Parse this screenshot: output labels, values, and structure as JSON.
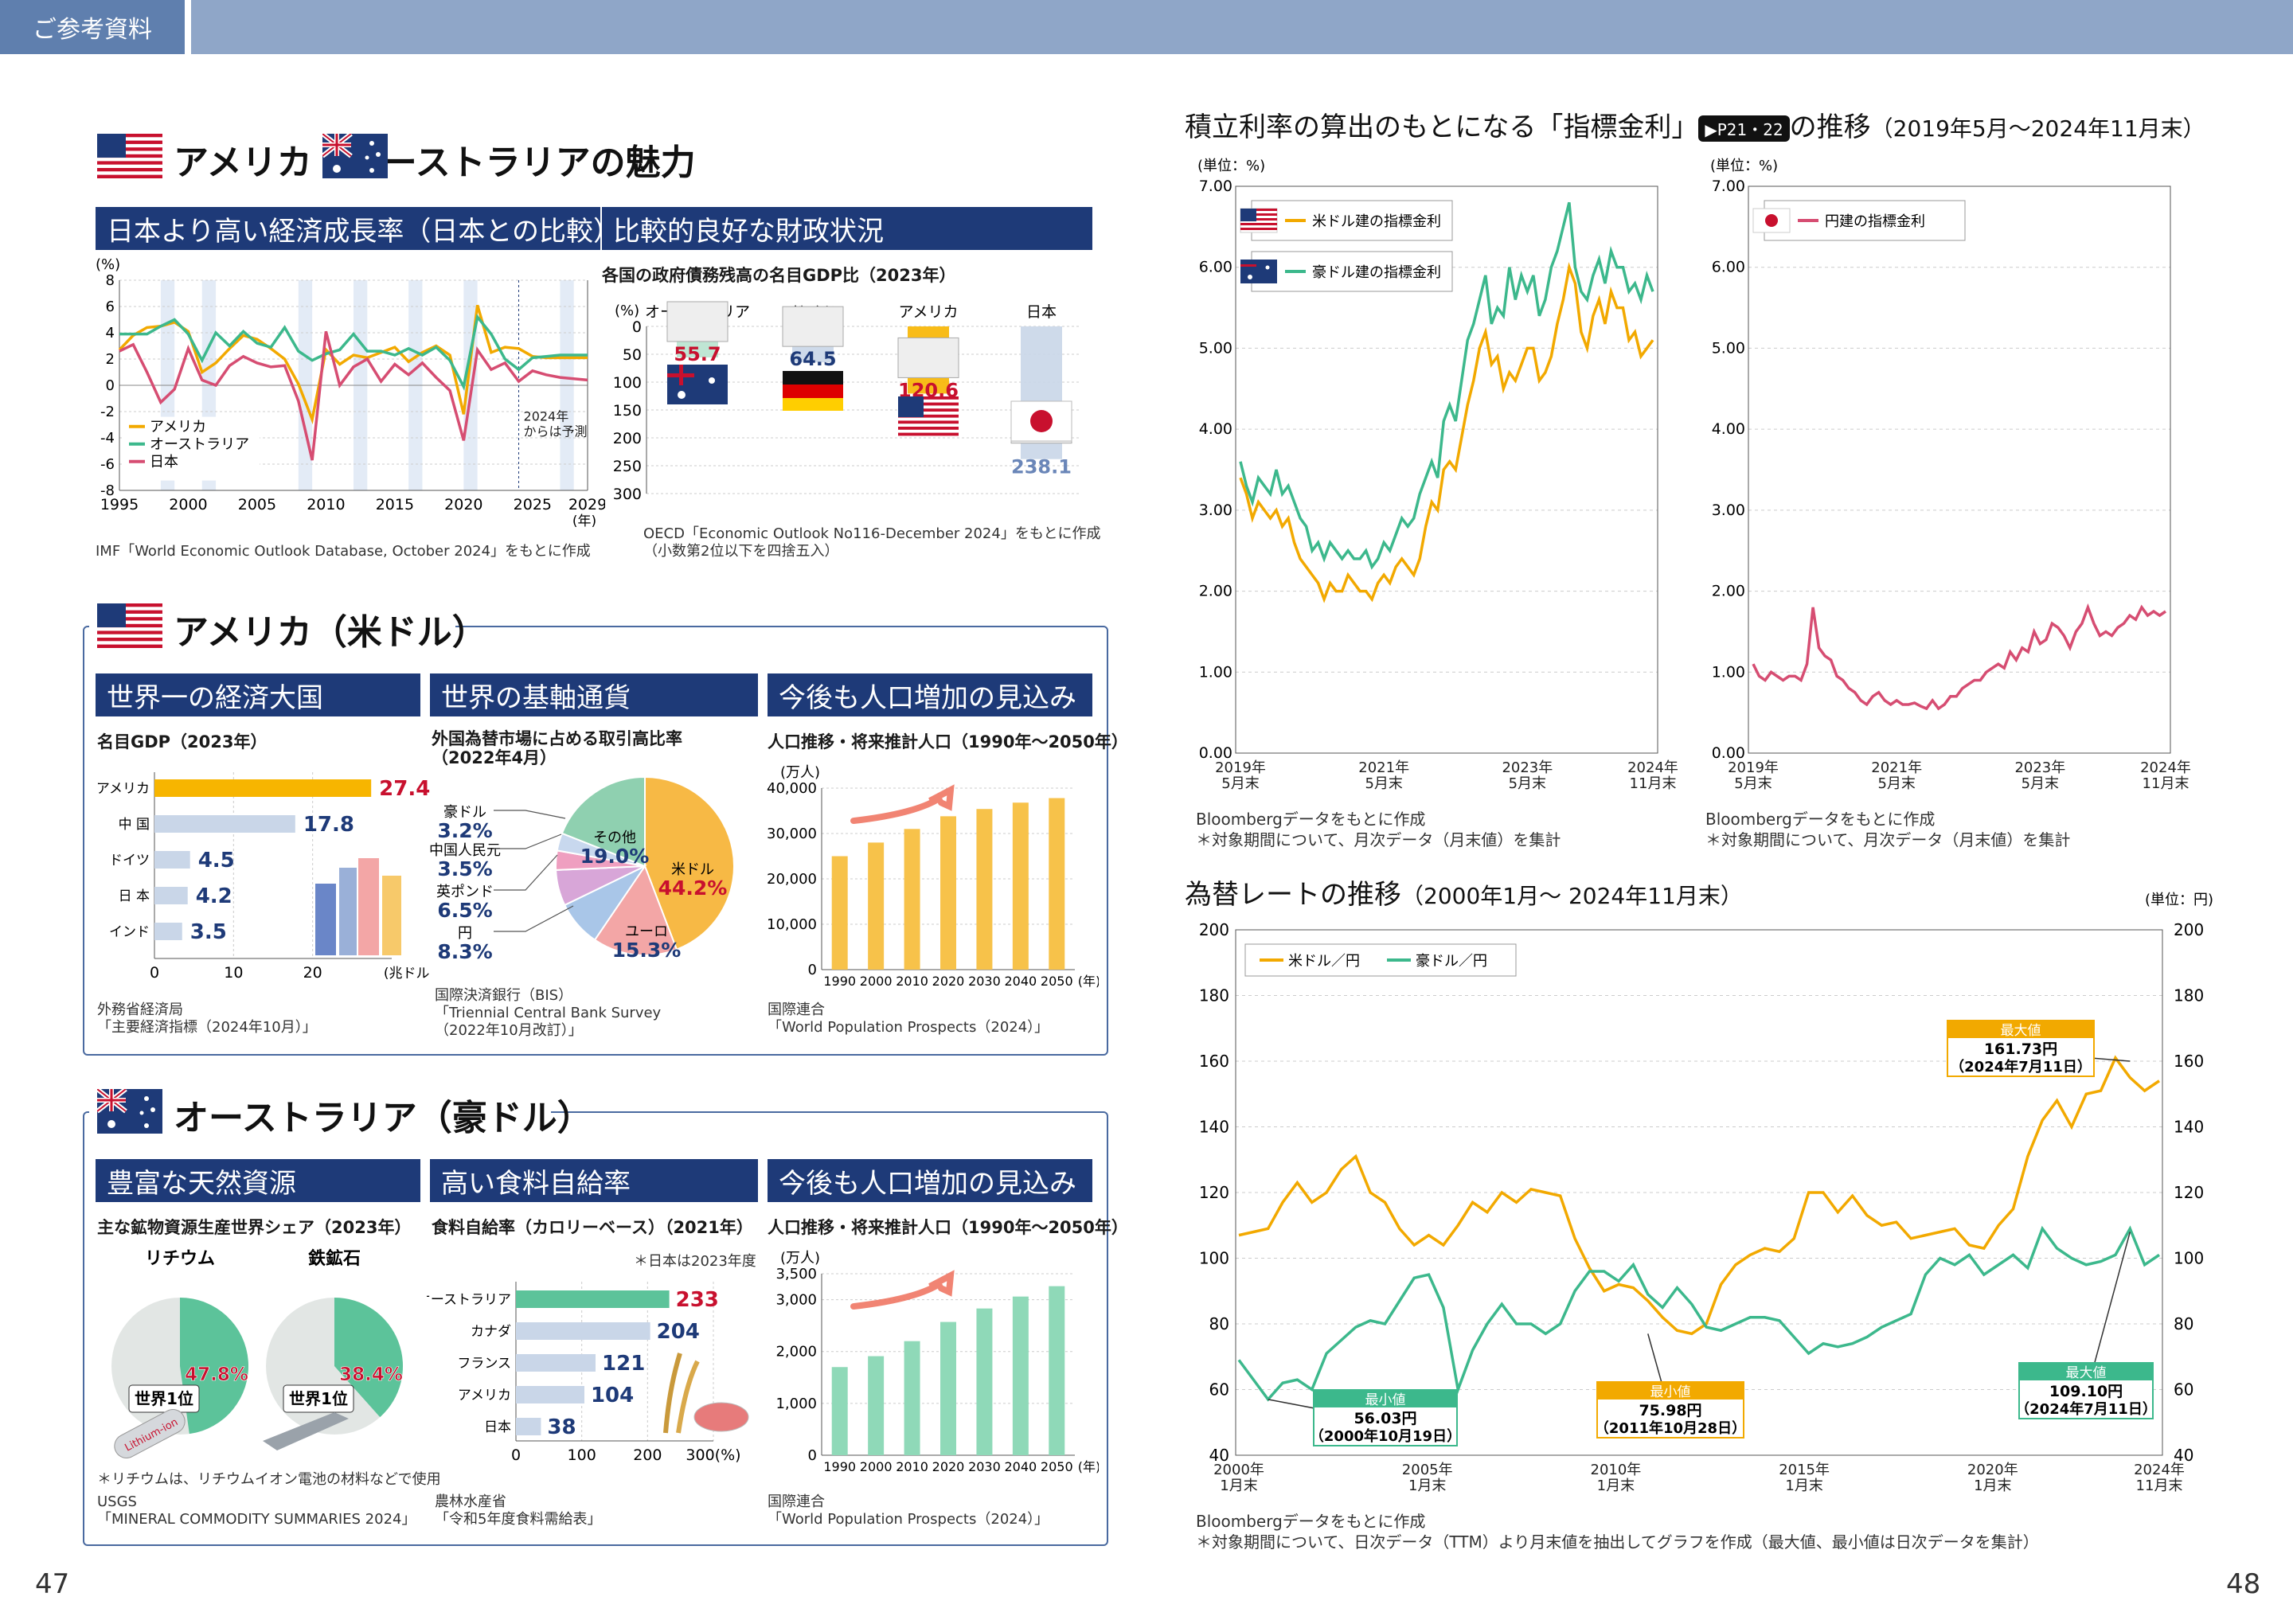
{
  "header_tag": "ご参考資料",
  "page_left": "47",
  "page_right": "48",
  "colors": {
    "navy": "#1e3a78",
    "usd": "#f2a900",
    "aud": "#3cb88c",
    "jpy": "#d64d72",
    "bar_usa": "#f7b500",
    "bar_other": "#c9d6e8"
  },
  "left": {
    "title1": "アメリカ・オーストラリアの魅力",
    "band_growth": "日本より高い経済成長率（日本との比較）",
    "band_fiscal": "比較的良好な財政状況",
    "growth_src": "IMF「World Economic Outlook Database, October 2024」をもとに作成",
    "growth_forecast_note": "2024年\nからは予測",
    "fiscal_sub": "各国の政府債務残高の名目GDP比（2023年）",
    "fiscal_src": "OECD「Economic Outlook No116-December 2024」をもとに作成\n（小数第2位以下を四捨五入）",
    "title_usa": "アメリカ（米ドル）",
    "band_usa1": "世界一の経済大国",
    "band_usa2": "世界の基軸通貨",
    "band_usa3": "今後も人口増加の見込み",
    "gdp_sub": "名目GDP（2023年）",
    "gdp_src": "外務省経済局\n「主要経済指標（2024年10月）」",
    "fx_sub": "外国為替市場に占める取引高比率\n（2022年4月）",
    "fx_src": "国際決済銀行（BIS）\n「Triennial Central Bank Survey\n（2022年10月改訂）」",
    "pop_sub": "人口推移・将来推計人口（1990年～2050年）",
    "pop_src": "国際連合\n「World Population Prospects（2024）」",
    "title_aus": "オーストラリア（豪ドル）",
    "band_aus1": "豊富な天然資源",
    "band_aus2": "高い食料自給率",
    "band_aus3": "今後も人口増加の見込み",
    "mineral_sub": "主な鉱物資源生産世界シェア（2023年）",
    "mineral_note": "＊リチウムは、リチウムイオン電池の材料などで使用",
    "mineral_src": "USGS\n「MINERAL COMMODITY SUMMARIES 2024」",
    "lithium_tag": "Lithium-ion",
    "food_sub": "食料自給率（カロリーベース）（2021年）",
    "food_note": "＊日本は2023年度",
    "food_src": "農林水産省\n「令和5年度食料需給表」",
    "pop2_sub": "人口推移・将来推計人口（1990年～2050年）",
    "pop2_src": "国際連合\n「World Population Prospects（2024）」"
  },
  "right": {
    "title_rates_pre": "積立利率の算出のもとになる「指標金利」",
    "rates_badge": "▶P21・22",
    "title_rates_post": "の推移",
    "title_rates_period": "（2019年5月～2024年11月末）",
    "rates_src": "Bloombergデータをもとに作成\n＊対象期間について、月次データ（月末値）を集計",
    "title_fx": "為替レートの推移",
    "title_fx_period": "（2000年1月～ 2024年11月末）",
    "fx_src": "Bloombergデータをもとに作成\n＊対象期間について、日次データ（TTM）より月末値を抽出してグラフを作成（最大値、最小値は日次データを集計）"
  },
  "chart_data": [
    {
      "id": "growth",
      "type": "line",
      "ylabel": "(%)",
      "xunit": "(年)",
      "ylim": [
        -8,
        8
      ],
      "yticks": [
        8,
        6,
        4,
        2,
        0,
        -2,
        -4,
        -6,
        -8
      ],
      "xticks": [
        1995,
        2000,
        2005,
        2010,
        2015,
        2020,
        2025,
        2029
      ],
      "x": [
        1995,
        1996,
        1997,
        1998,
        1999,
        2000,
        2001,
        2002,
        2003,
        2004,
        2005,
        2006,
        2007,
        2008,
        2009,
        2010,
        2011,
        2012,
        2013,
        2014,
        2015,
        2016,
        2017,
        2018,
        2019,
        2020,
        2021,
        2022,
        2023,
        2024,
        2025,
        2026,
        2027,
        2028,
        2029
      ],
      "series": [
        {
          "name": "アメリカ",
          "color": "#f2a900",
          "values": [
            2.7,
            3.8,
            4.4,
            4.5,
            4.8,
            4.1,
            1.0,
            1.7,
            2.8,
            3.8,
            3.5,
            2.8,
            2.0,
            0.1,
            -2.6,
            2.7,
            1.6,
            2.3,
            2.1,
            2.5,
            2.9,
            1.8,
            2.5,
            3.0,
            2.3,
            -2.2,
            6.1,
            2.5,
            2.9,
            2.8,
            2.2,
            2.1,
            2.1,
            2.1,
            2.1
          ]
        },
        {
          "name": "オーストラリア",
          "color": "#3cb88c",
          "values": [
            3.9,
            3.9,
            3.9,
            4.5,
            5.0,
            3.9,
            1.9,
            4.0,
            3.0,
            4.1,
            3.2,
            2.9,
            4.4,
            2.6,
            1.9,
            2.4,
            2.7,
            3.9,
            2.6,
            2.6,
            2.3,
            2.8,
            2.3,
            2.9,
            1.9,
            -0.1,
            5.2,
            3.9,
            2.0,
            1.2,
            2.1,
            2.2,
            2.3,
            2.3,
            2.3
          ]
        },
        {
          "name": "日本",
          "color": "#d64d72",
          "values": [
            2.6,
            3.1,
            1.0,
            -1.3,
            -0.3,
            2.8,
            0.4,
            0.0,
            1.5,
            2.2,
            1.7,
            1.4,
            1.5,
            -1.2,
            -5.7,
            4.1,
            0.0,
            1.4,
            2.0,
            0.3,
            1.6,
            0.8,
            1.7,
            0.6,
            -0.4,
            -4.2,
            2.7,
            1.2,
            1.7,
            0.3,
            1.1,
            0.8,
            0.6,
            0.5,
            0.4
          ]
        }
      ]
    },
    {
      "id": "debt",
      "type": "bar",
      "ylabel": "(%)",
      "ylim": [
        0,
        300
      ],
      "yticks": [
        0,
        50,
        100,
        150,
        200,
        250,
        300
      ],
      "categories": [
        "オーストラリア",
        "ドイツ",
        "アメリカ",
        "日本"
      ],
      "values": [
        55.7,
        64.5,
        120.6,
        238.1
      ],
      "value_labels": [
        "55.7",
        "64.5",
        "120.6",
        "238.1"
      ]
    },
    {
      "id": "gdp",
      "type": "bar",
      "orientation": "horizontal",
      "xunit": "(兆ドル)",
      "xlim": [
        0,
        30
      ],
      "xticks": [
        0,
        10,
        20
      ],
      "categories": [
        "アメリカ",
        "中 国",
        "ドイツ",
        "日 本",
        "インド"
      ],
      "values": [
        27.4,
        17.8,
        4.5,
        4.2,
        3.5
      ],
      "value_labels": [
        "27.4",
        "17.8",
        "4.5",
        "4.2",
        "3.5"
      ]
    },
    {
      "id": "fxshare",
      "type": "pie",
      "labels": [
        "米ドル",
        "ユーロ",
        "円",
        "英ポンド",
        "中国人民元",
        "豪ドル",
        "その他"
      ],
      "values": [
        44.2,
        15.3,
        8.3,
        6.5,
        3.5,
        3.2,
        19.0
      ],
      "value_labels": [
        "44.2%",
        "15.3%",
        "8.3%",
        "6.5%",
        "3.5%",
        "3.2%",
        "19.0%"
      ],
      "colors": [
        "#f7b945",
        "#f3a6a6",
        "#a9c6e8",
        "#d8a6d8",
        "#ef9fc0",
        "#c8d8ee",
        "#8fd0b0"
      ]
    },
    {
      "id": "pop_usa",
      "type": "bar",
      "ylabel": "(万人)",
      "xunit": "(年)",
      "ylim": [
        0,
        40000
      ],
      "yticks": [
        0,
        10000,
        20000,
        30000,
        40000
      ],
      "ytick_labels": [
        "0",
        "10,000",
        "20,000",
        "30,000",
        "40,000"
      ],
      "categories": [
        "1990",
        "2000",
        "2010",
        "2020",
        "2030",
        "2040",
        "2050"
      ],
      "values": [
        25000,
        28000,
        31000,
        33800,
        35400,
        36800,
        37800
      ]
    },
    {
      "id": "minerals",
      "type": "pie",
      "charts": [
        {
          "label": "リチウム",
          "value": 47.8,
          "value_label": "47.8%",
          "rank": "世界1位"
        },
        {
          "label": "鉄鉱石",
          "value": 38.4,
          "value_label": "38.4%",
          "rank": "世界1位"
        }
      ]
    },
    {
      "id": "food",
      "type": "bar",
      "orientation": "horizontal",
      "xunit": "(%)",
      "xlim": [
        0,
        300
      ],
      "xticks": [
        0,
        100,
        200,
        300
      ],
      "categories": [
        "オーストラリア",
        "カナダ",
        "フランス",
        "アメリカ",
        "日本"
      ],
      "values": [
        233,
        204,
        121,
        104,
        38
      ],
      "value_labels": [
        "233",
        "204",
        "121",
        "104",
        "38"
      ]
    },
    {
      "id": "pop_aus",
      "type": "bar",
      "ylabel": "(万人)",
      "xunit": "(年)",
      "ylim": [
        0,
        3500
      ],
      "yticks": [
        0,
        1000,
        2000,
        3000,
        3500
      ],
      "ytick_labels": [
        "0",
        "1,000",
        "2,000",
        "3,000",
        "3,500"
      ],
      "categories": [
        "1990",
        "2000",
        "2010",
        "2020",
        "2030",
        "2040",
        "2050"
      ],
      "values": [
        1700,
        1910,
        2200,
        2570,
        2830,
        3060,
        3260
      ]
    },
    {
      "id": "rates_usd_aud",
      "type": "line",
      "ylabel": "(単位：%)",
      "ylim": [
        0,
        7
      ],
      "yticks": [
        "0.00",
        "1.00",
        "2.00",
        "3.00",
        "4.00",
        "5.00",
        "6.00",
        "7.00"
      ],
      "xticks": [
        "2019年\n5月末",
        "2021年\n5月末",
        "2023年\n5月末",
        "2024年\n11月末"
      ],
      "series": [
        {
          "name": "米ドル建の指標金利",
          "color": "#f2a900",
          "values": [
            3.4,
            3.2,
            2.9,
            3.1,
            3.0,
            2.9,
            3.0,
            2.8,
            2.9,
            2.6,
            2.4,
            2.3,
            2.2,
            2.1,
            1.9,
            2.1,
            2.0,
            2.0,
            2.2,
            2.1,
            2.0,
            2.0,
            1.9,
            2.1,
            2.2,
            2.1,
            2.3,
            2.4,
            2.3,
            2.2,
            2.4,
            2.8,
            3.1,
            3.0,
            3.5,
            3.6,
            3.5,
            3.9,
            4.3,
            4.6,
            5.0,
            5.2,
            4.8,
            4.9,
            4.5,
            4.7,
            4.6,
            4.8,
            5.0,
            5.0,
            4.6,
            4.7,
            4.9,
            5.3,
            5.6,
            6.0,
            5.8,
            5.2,
            5.0,
            5.4,
            5.6,
            5.3,
            5.7,
            5.5,
            5.5,
            5.1,
            5.2,
            4.9,
            5.0,
            5.1
          ]
        },
        {
          "name": "豪ドル建の指標金利",
          "color": "#3cb88c",
          "values": [
            3.6,
            3.3,
            3.1,
            3.4,
            3.3,
            3.2,
            3.5,
            3.2,
            3.3,
            3.1,
            2.9,
            2.8,
            2.5,
            2.6,
            2.4,
            2.6,
            2.5,
            2.4,
            2.5,
            2.4,
            2.4,
            2.5,
            2.3,
            2.4,
            2.6,
            2.5,
            2.7,
            2.9,
            2.8,
            2.9,
            3.2,
            3.4,
            3.6,
            3.4,
            4.1,
            4.3,
            4.1,
            4.6,
            5.1,
            5.3,
            5.6,
            5.9,
            5.3,
            5.5,
            5.4,
            6.0,
            5.6,
            5.9,
            5.7,
            5.9,
            5.4,
            5.6,
            6.0,
            6.2,
            6.5,
            6.8,
            6.0,
            5.7,
            5.6,
            5.9,
            6.1,
            5.8,
            6.2,
            6.0,
            6.0,
            5.7,
            5.8,
            5.6,
            5.9,
            5.7
          ]
        }
      ]
    },
    {
      "id": "rates_jpy",
      "type": "line",
      "ylabel": "(単位：%)",
      "ylim": [
        0,
        7
      ],
      "yticks": [
        "0.00",
        "1.00",
        "2.00",
        "3.00",
        "4.00",
        "5.00",
        "6.00",
        "7.00"
      ],
      "xticks": [
        "2019年\n5月末",
        "2021年\n5月末",
        "2023年\n5月末",
        "2024年\n11月末"
      ],
      "series": [
        {
          "name": "円建の指標金利",
          "color": "#d64d72",
          "values": [
            1.1,
            0.95,
            0.9,
            1.0,
            0.95,
            0.9,
            0.95,
            0.95,
            0.9,
            1.1,
            1.8,
            1.3,
            1.2,
            1.15,
            0.95,
            0.9,
            0.8,
            0.75,
            0.65,
            0.6,
            0.7,
            0.75,
            0.65,
            0.6,
            0.65,
            0.6,
            0.6,
            0.62,
            0.58,
            0.55,
            0.65,
            0.55,
            0.6,
            0.7,
            0.7,
            0.8,
            0.85,
            0.9,
            0.9,
            1.0,
            1.05,
            1.1,
            1.05,
            1.25,
            1.15,
            1.3,
            1.25,
            1.5,
            1.35,
            1.4,
            1.6,
            1.55,
            1.45,
            1.3,
            1.5,
            1.6,
            1.8,
            1.6,
            1.45,
            1.5,
            1.45,
            1.55,
            1.6,
            1.7,
            1.65,
            1.8,
            1.7,
            1.75,
            1.7,
            1.75
          ]
        }
      ]
    },
    {
      "id": "fx_rates",
      "type": "line",
      "ylabel": "(単位：円)",
      "ylim": [
        40,
        200
      ],
      "yticks": [
        40,
        60,
        80,
        100,
        120,
        140,
        160,
        180,
        200
      ],
      "xticks": [
        "2000年\n1月末",
        "2005年\n1月末",
        "2010年\n1月末",
        "2015年\n1月末",
        "2020年\n1月末",
        "2024年\n11月末"
      ],
      "series": [
        {
          "name": "米ドル／円",
          "color": "#f2a900",
          "values": [
            107,
            108,
            109,
            117,
            123,
            117,
            120,
            127,
            131,
            120,
            117,
            109,
            104,
            107,
            104,
            110,
            117,
            114,
            120,
            117,
            121,
            120,
            119,
            106,
            97,
            90,
            92,
            91,
            87,
            82,
            78,
            77,
            80,
            92,
            98,
            101,
            103,
            102,
            106,
            120,
            120,
            114,
            119,
            113,
            110,
            111,
            106,
            107,
            108,
            109,
            104,
            103,
            110,
            115,
            131,
            142,
            148,
            140,
            150,
            151,
            161,
            155,
            151,
            154
          ]
        },
        {
          "name": "豪ドル／円",
          "color": "#3cb88c",
          "values": [
            69,
            63,
            57,
            62,
            63,
            60,
            71,
            75,
            79,
            81,
            80,
            87,
            94,
            95,
            85,
            60,
            72,
            80,
            86,
            80,
            80,
            77,
            80,
            90,
            96,
            96,
            93,
            98,
            89,
            85,
            91,
            86,
            79,
            78,
            80,
            82,
            82,
            81,
            76,
            71,
            74,
            73,
            74,
            76,
            79,
            81,
            83,
            95,
            100,
            98,
            101,
            95,
            98,
            101,
            97,
            109,
            103,
            100,
            98,
            99,
            101,
            109,
            98,
            101
          ]
        }
      ],
      "annotations": [
        {
          "label": "最大値",
          "value": "161.73円",
          "date": "（2024年7月11日）",
          "series": "米ドル／円"
        },
        {
          "label": "最小値",
          "value": "75.98円",
          "date": "（2011年10月28日）",
          "series": "米ドル／円"
        },
        {
          "label": "最大値",
          "value": "109.10円",
          "date": "（2024年7月11日）",
          "series": "豪ドル／円"
        },
        {
          "label": "最小値",
          "value": "56.03円",
          "date": "（2000年10月19日）",
          "series": "豪ドル／円"
        }
      ]
    }
  ]
}
